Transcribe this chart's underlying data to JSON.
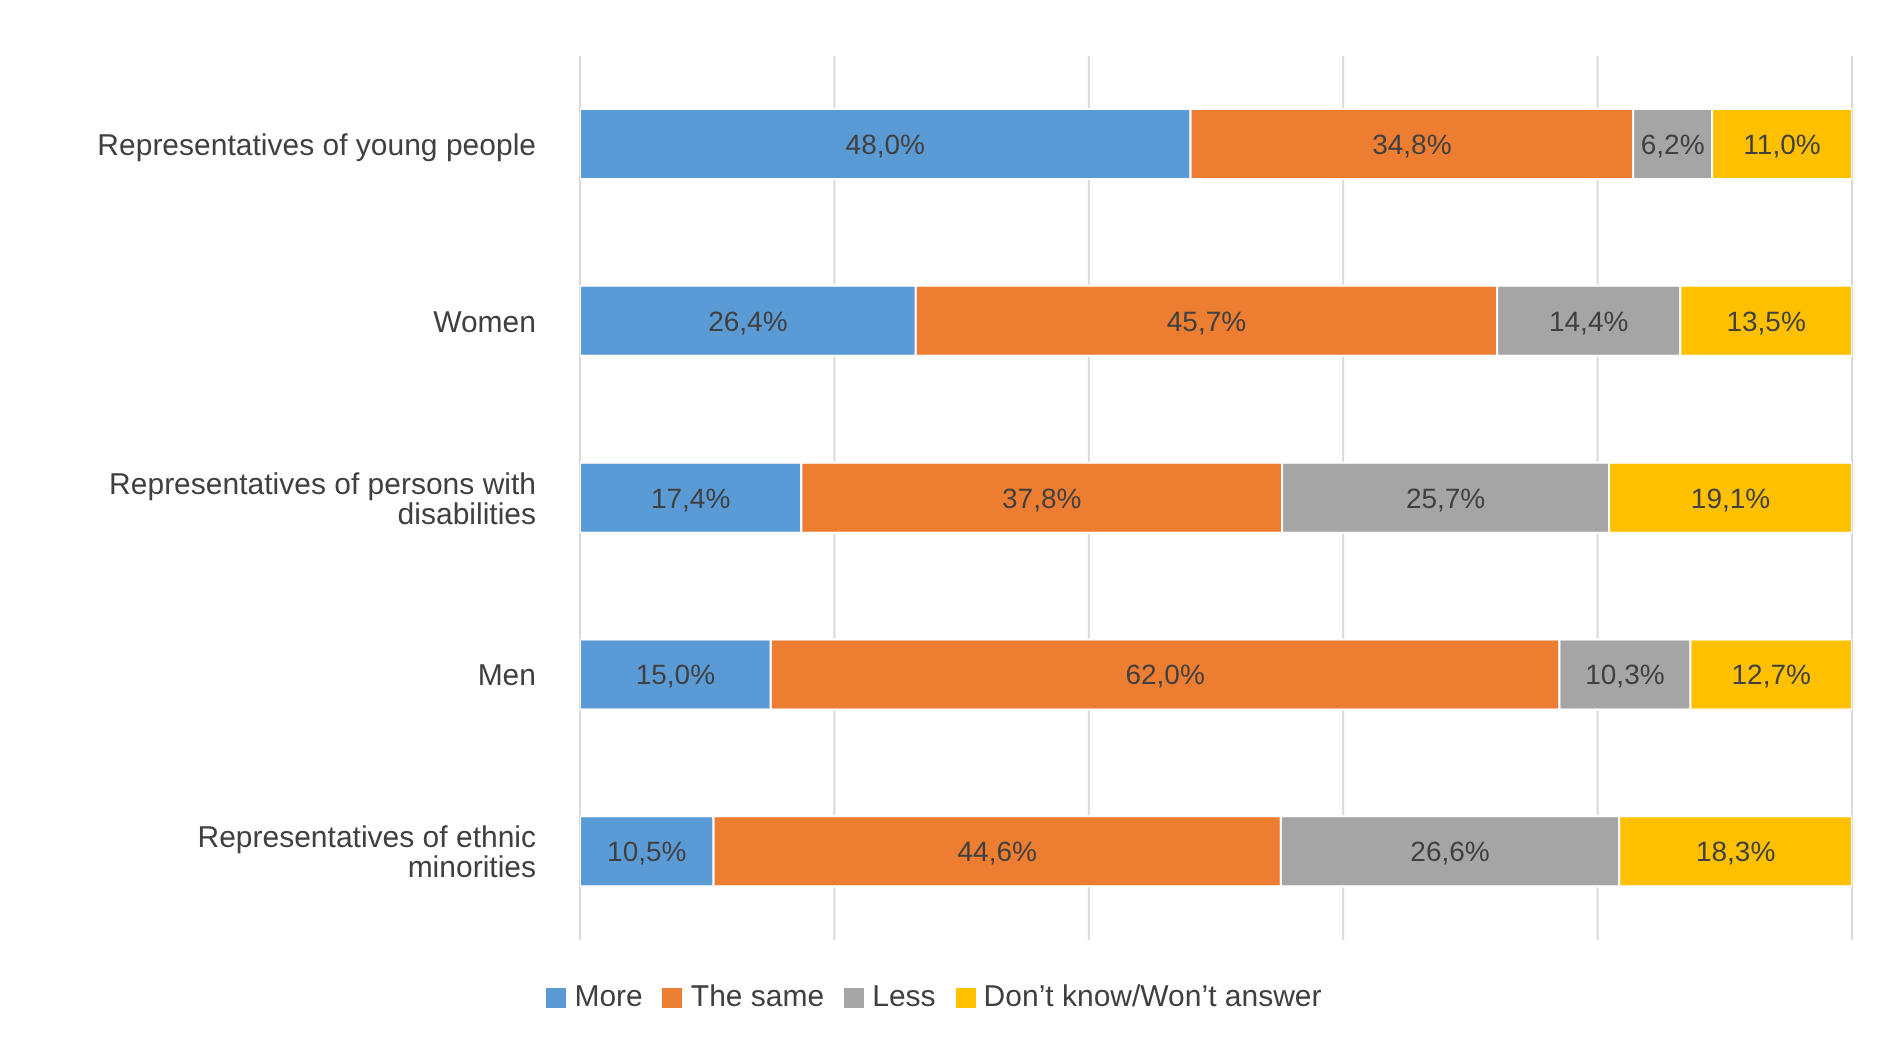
{
  "chart_data": {
    "type": "bar",
    "orientation": "horizontal",
    "stacked": true,
    "categories": [
      "Representatives of young people",
      "Women",
      "Representatives of persons with disabilities",
      "Men",
      "Representatives of ethnic minorities"
    ],
    "series": [
      {
        "name": "More",
        "color": "#5b9bd5",
        "values": [
          48.0,
          26.4,
          17.4,
          15.0,
          10.5
        ],
        "value_labels": [
          "48,0%",
          "26,4%",
          "17,4%",
          "15,0%",
          "10,5%"
        ]
      },
      {
        "name": "The same",
        "color": "#ed7d31",
        "values": [
          34.8,
          45.7,
          37.8,
          62.0,
          44.6
        ],
        "value_labels": [
          "34,8%",
          "45,7%",
          "37,8%",
          "62,0%",
          "44,6%"
        ]
      },
      {
        "name": "Less",
        "color": "#a5a5a5",
        "values": [
          6.2,
          14.4,
          25.7,
          10.3,
          26.6
        ],
        "value_labels": [
          "6,2%",
          "14,4%",
          "25,7%",
          "10,3%",
          "26,6%"
        ]
      },
      {
        "name": "Don’t know/Won’t answer",
        "color": "#ffc000",
        "values": [
          11.0,
          13.5,
          19.1,
          12.7,
          18.3
        ],
        "value_labels": [
          "11,0%",
          "13,5%",
          "19,1%",
          "12,7%",
          "18,3%"
        ]
      }
    ],
    "xlim": [
      0,
      100
    ],
    "xticks": [
      {
        "value": 0,
        "label": null
      },
      {
        "value": 20,
        "label": null
      },
      {
        "value": 40,
        "label": null
      },
      {
        "value": 60,
        "label": null
      },
      {
        "value": 80,
        "label": null
      },
      {
        "value": 100,
        "label": null
      }
    ],
    "tick_labels": "y",
    "grid": "x",
    "legend": "bottom"
  }
}
